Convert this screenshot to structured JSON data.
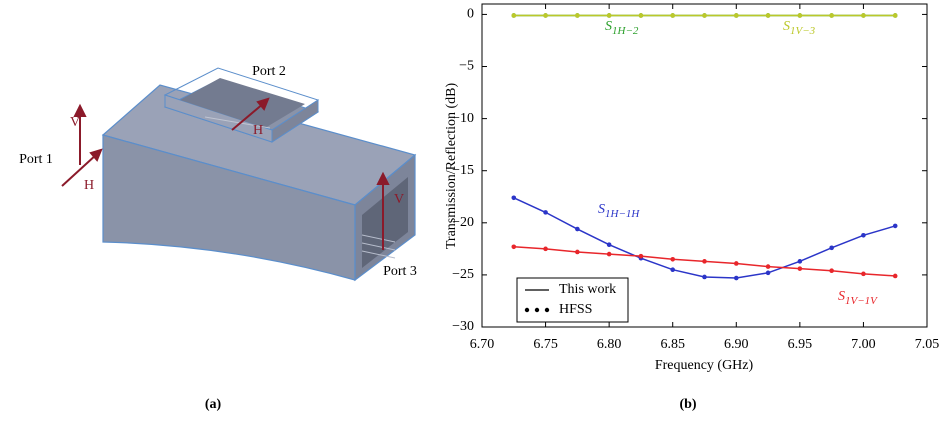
{
  "diagram": {
    "labels": {
      "port1": "Port 1",
      "port2": "Port 2",
      "port3": "Port 3",
      "v1": "V",
      "h1": "H",
      "h2": "H",
      "v3": "V"
    },
    "caption": "(a)"
  },
  "caption_b": "(b)",
  "chart_data": {
    "type": "line",
    "x_label": "Frequency (GHz)",
    "y_label": "Transmission/Reflection (dB)",
    "x": [
      6.725,
      6.75,
      6.775,
      6.8,
      6.825,
      6.85,
      6.875,
      6.9,
      6.925,
      6.95,
      6.975,
      7.0,
      7.025
    ],
    "series": [
      {
        "symbol": "S",
        "subscript": "1H−2",
        "color": "#2ca02c",
        "values": [
          -0.1,
          -0.1,
          -0.1,
          -0.1,
          -0.1,
          -0.1,
          -0.1,
          -0.1,
          -0.1,
          -0.1,
          -0.1,
          -0.1,
          -0.1
        ]
      },
      {
        "symbol": "S",
        "subscript": "1V−3",
        "color": "#bcc82a",
        "values": [
          -0.1,
          -0.1,
          -0.1,
          -0.1,
          -0.1,
          -0.1,
          -0.1,
          -0.1,
          -0.1,
          -0.1,
          -0.1,
          -0.1,
          -0.1
        ]
      },
      {
        "symbol": "S",
        "subscript": "1H−1H",
        "color": "#2b35c8",
        "values": [
          -17.6,
          -19.0,
          -20.6,
          -22.1,
          -23.4,
          -24.5,
          -25.2,
          -25.3,
          -24.8,
          -23.7,
          -22.4,
          -21.2,
          -20.3
        ]
      },
      {
        "symbol": "S",
        "subscript": "1V−1V",
        "color": "#e8262b",
        "values": [
          -22.3,
          -22.5,
          -22.8,
          -23.0,
          -23.2,
          -23.5,
          -23.7,
          -23.9,
          -24.2,
          -24.4,
          -24.6,
          -24.9,
          -25.1
        ]
      }
    ],
    "legend": [
      "This work",
      "HFSS"
    ],
    "legend_position": "lower left",
    "xlim": [
      6.7,
      7.05
    ],
    "xticks": [
      {
        "value": 6.7,
        "label": "6.70"
      },
      {
        "value": 6.75,
        "label": "6.75"
      },
      {
        "value": 6.8,
        "label": "6.80"
      },
      {
        "value": 6.85,
        "label": "6.85"
      },
      {
        "value": 6.9,
        "label": "6.90"
      },
      {
        "value": 6.95,
        "label": "6.95"
      },
      {
        "value": 7.0,
        "label": "7.00"
      },
      {
        "value": 7.05,
        "label": "7.05"
      }
    ],
    "ylim": [
      -30,
      1
    ],
    "yticks": [
      {
        "value": -30,
        "label": "−30"
      },
      {
        "value": -25,
        "label": "−25"
      },
      {
        "value": -20,
        "label": "−20"
      },
      {
        "value": -15,
        "label": "−15"
      },
      {
        "value": -10,
        "label": "−10"
      },
      {
        "value": -5,
        "label": "−5"
      },
      0
    ]
  }
}
